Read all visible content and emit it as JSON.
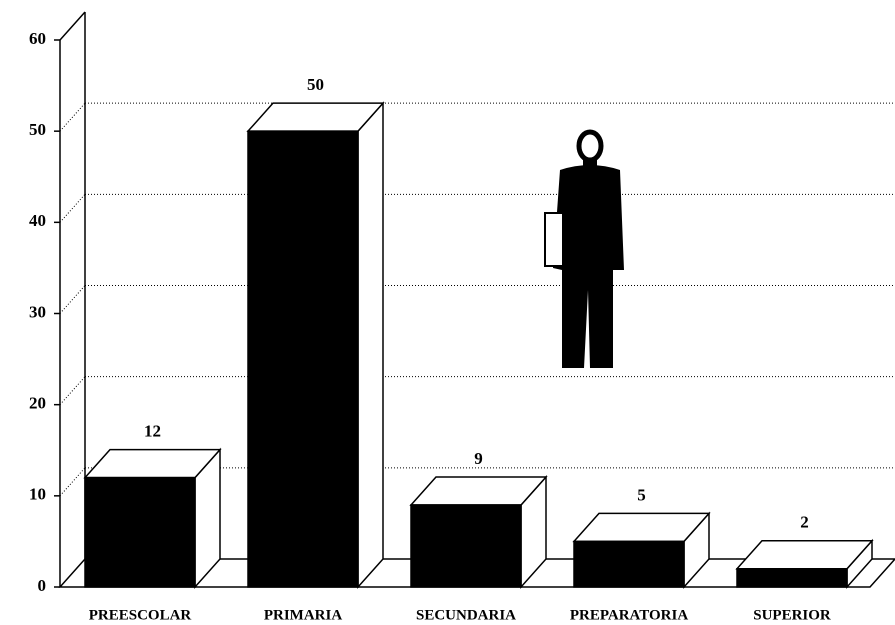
{
  "chart_data": {
    "type": "bar",
    "categories": [
      "PREESCOLAR",
      "PRIMARIA",
      "SECUNDARIA",
      "PREPARATORIA",
      "SUPERIOR"
    ],
    "values": [
      12,
      50,
      9,
      5,
      2
    ],
    "color": "#000000",
    "ylim": [
      0,
      60
    ],
    "yticks": [
      0,
      10,
      20,
      30,
      40,
      50,
      60
    ],
    "grid": true
  }
}
